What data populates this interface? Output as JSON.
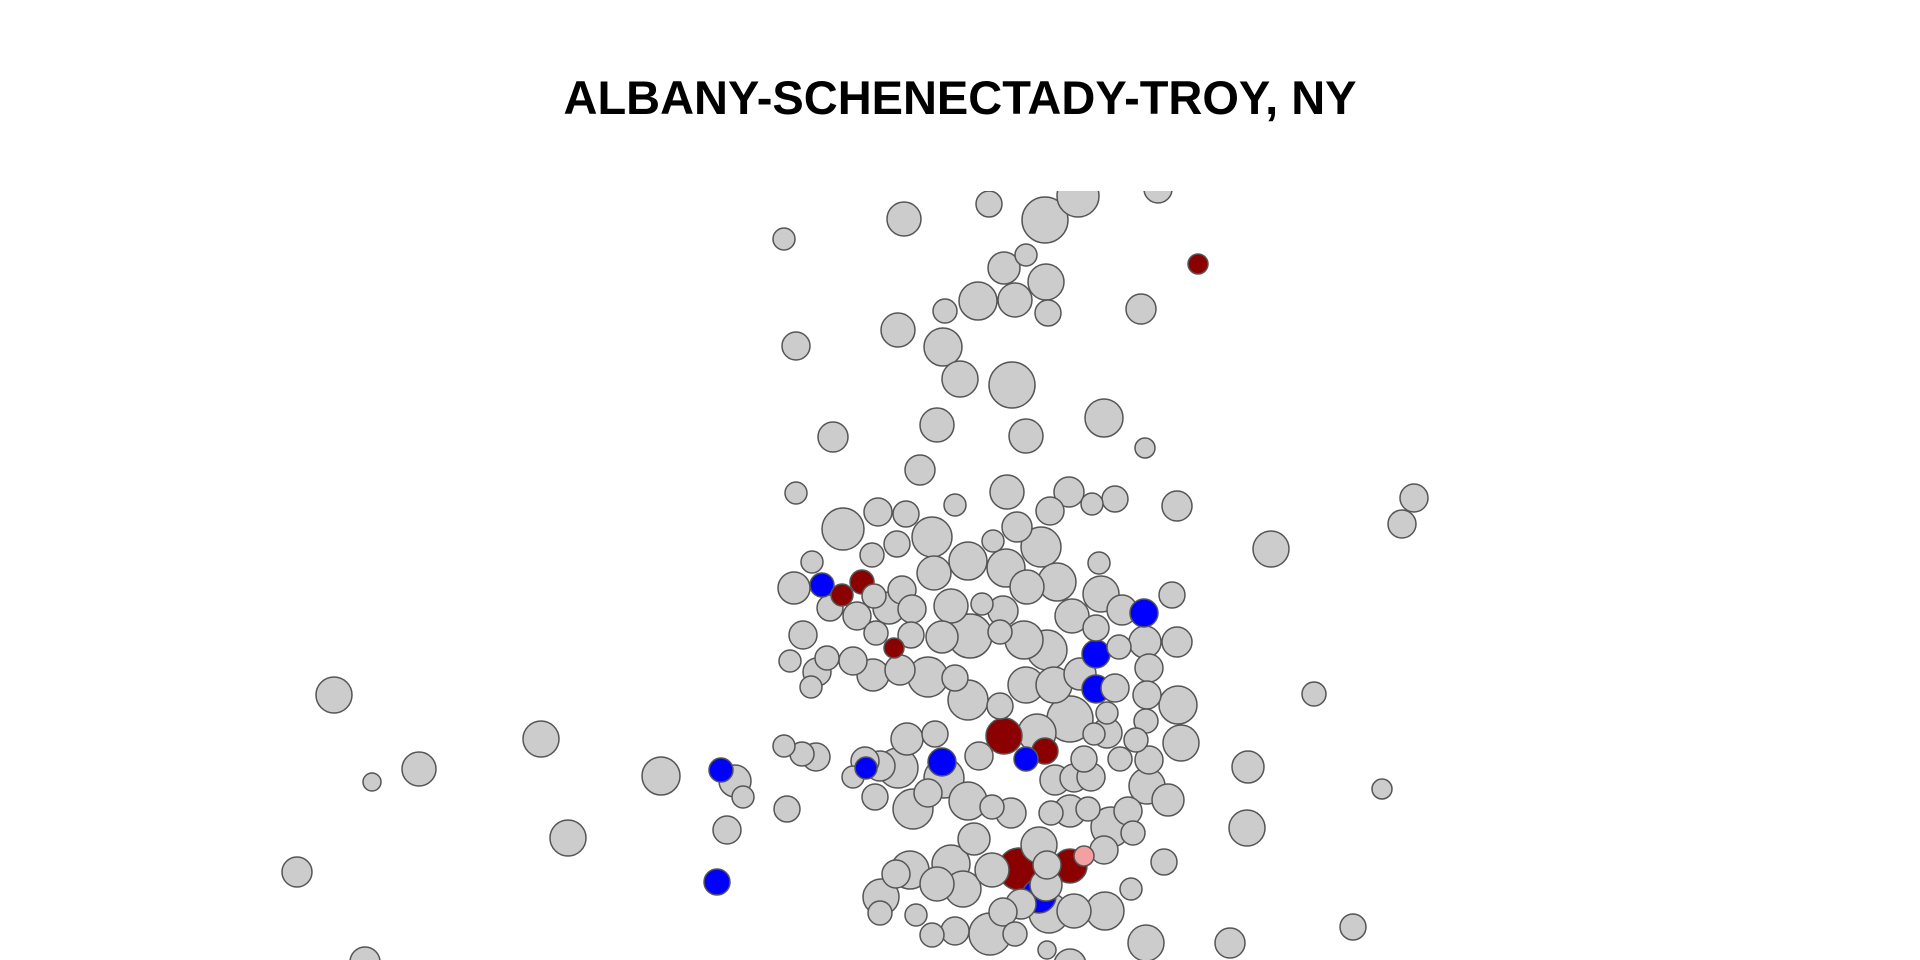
{
  "map": {
    "title": "ALBANY-SCHENECTADY-TROY, NY"
  },
  "colors": {
    "background": "#ffffff",
    "neutral_fill": "#cccccc",
    "outline": "#555555",
    "blue": "#0000ff",
    "dark_red": "#8b0000",
    "light_red": "#f4a0a0"
  },
  "legend_note": "Bubble fill classes: neutral (gray), blue, dark_red, light_red"
}
